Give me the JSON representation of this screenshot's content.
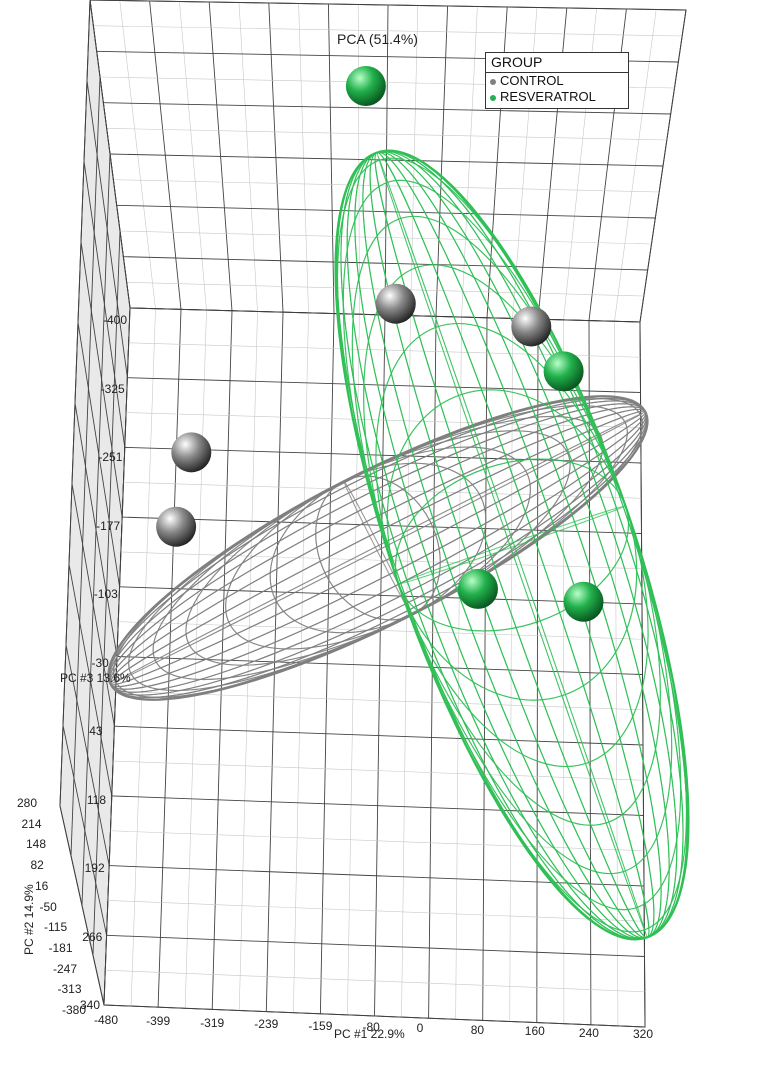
{
  "chart_data": {
    "type": "scatter",
    "title": "PCA (51.4%)",
    "legend": {
      "title": "GROUP",
      "placement": "top-right",
      "entries": [
        {
          "name": "CONTROL",
          "color": "#808080"
        },
        {
          "name": "RESVERATROL",
          "color": "#22b14c"
        }
      ]
    },
    "xlabel": "PC #1 22.9%",
    "ylabel": "PC #2 14.9%",
    "zlabel": "PC #3 13.6%",
    "x_ticks": [
      "-480",
      "-399",
      "-319",
      "-239",
      "-159",
      "-80",
      "0",
      "80",
      "160",
      "240",
      "320"
    ],
    "y_ticks": [
      "280",
      "214",
      "148",
      "82",
      "16",
      "-50",
      "-115",
      "-181",
      "-247",
      "-313",
      "-380"
    ],
    "z_ticks": [
      "-400",
      "-325",
      "-251",
      "-177",
      "-103",
      "-30",
      "43",
      "118",
      "192",
      "266",
      "340"
    ],
    "grid": true,
    "series": [
      {
        "name": "CONTROL",
        "color": "#808080",
        "points": [
          {
            "x": -60,
            "y": -30,
            "z": -250
          },
          {
            "x": 150,
            "y": -40,
            "z": -235
          },
          {
            "x": -370,
            "y": -60,
            "z": -100
          },
          {
            "x": -390,
            "y": -80,
            "z": -30
          }
        ]
      },
      {
        "name": "RESVERATROL",
        "color": "#22b14c",
        "points": [
          {
            "x": -110,
            "y": 140,
            "z": -400
          },
          {
            "x": 200,
            "y": -10,
            "z": -175
          },
          {
            "x": 70,
            "y": -90,
            "z": 20
          },
          {
            "x": 230,
            "y": -100,
            "z": 25
          }
        ]
      }
    ]
  }
}
